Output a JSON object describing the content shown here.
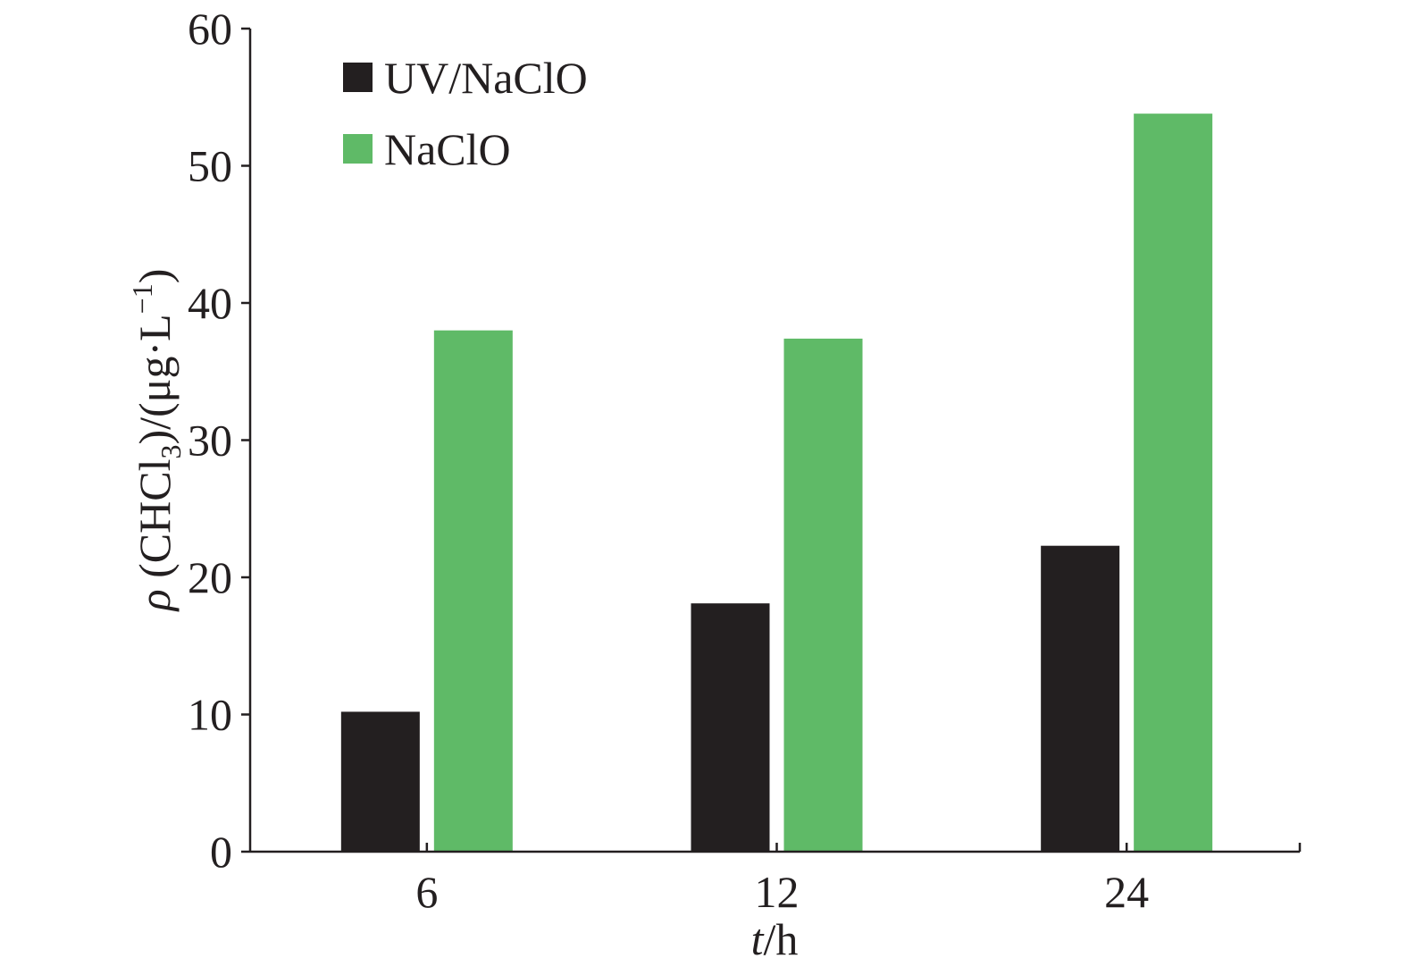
{
  "chart_data": {
    "type": "bar",
    "categories": [
      "6",
      "12",
      "24"
    ],
    "series": [
      {
        "name": "UV/NaClO",
        "values": [
          10.2,
          18.1,
          22.3
        ],
        "color": "#231f20"
      },
      {
        "name": "NaClO",
        "values": [
          38.0,
          37.4,
          53.8
        ],
        "color": "#5fba67"
      }
    ],
    "xlabel": {
      "var": "t",
      "rest": "/h"
    },
    "ylabel": {
      "symbol": "ρ",
      "pre": " (CHCl",
      "sub": "3",
      "mid": ")/(μg·L",
      "sup": "−1",
      "post": ")"
    },
    "ylim": [
      0,
      60
    ],
    "yticks": [
      0,
      10,
      20,
      30,
      40,
      50,
      60
    ],
    "legend_position": "top-left",
    "grid": false
  }
}
